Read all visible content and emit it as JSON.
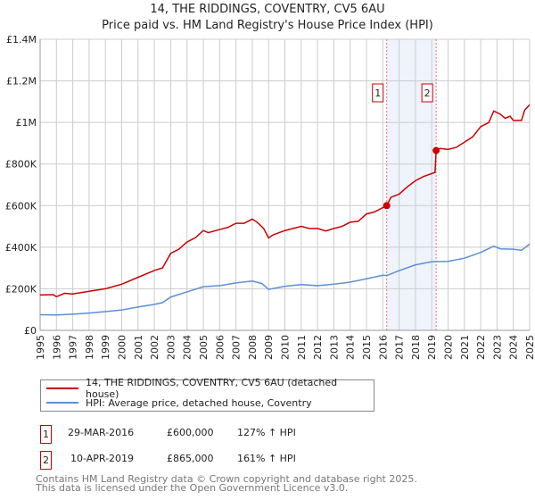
{
  "chart_data": {
    "type": "line",
    "title": "14, THE RIDDINGS, COVENTRY, CV5 6AU",
    "subtitle": "Price paid vs. HM Land Registry's House Price Index (HPI)",
    "xlim": [
      1995,
      2025
    ],
    "ylim": [
      0,
      1400000
    ],
    "y_ticks": [
      0,
      200000,
      400000,
      600000,
      800000,
      1000000,
      1200000,
      1400000
    ],
    "y_tick_labels": [
      "£0",
      "£200K",
      "£400K",
      "£600K",
      "£800K",
      "£1M",
      "£1.2M",
      "£1.4M"
    ],
    "x_ticks": [
      "1995",
      "1996",
      "1997",
      "1998",
      "1999",
      "2000",
      "2001",
      "2002",
      "2003",
      "2004",
      "2005",
      "2006",
      "2007",
      "2008",
      "2009",
      "2010",
      "2011",
      "2012",
      "2013",
      "2014",
      "2015",
      "2016",
      "2017",
      "2018",
      "2019",
      "2020",
      "2021",
      "2022",
      "2023",
      "2024",
      "2025"
    ],
    "grid": true,
    "shaded_range": [
      2016.24,
      2019.27
    ],
    "series": [
      {
        "name": "14, THE RIDDINGS, COVENTRY, CV5 6AU (detached house)",
        "color": "#cc0000",
        "x": [
          1995,
          1995.8,
          1996,
          1996.5,
          1997,
          1998,
          1999,
          2000,
          2001,
          2002,
          2002.5,
          2003,
          2003.5,
          2004,
          2004.5,
          2005,
          2005.3,
          2006,
          2006.5,
          2007,
          2007.5,
          2008,
          2008.3,
          2008.7,
          2009,
          2009.3,
          2010,
          2010.5,
          2011,
          2011.5,
          2012,
          2012.5,
          2013,
          2013.5,
          2014,
          2014.5,
          2015,
          2015.5,
          2016.24,
          2016.5,
          2017,
          2017.5,
          2018,
          2018.5,
          2019.2,
          2019.27,
          2019.5,
          2020,
          2020.5,
          2021,
          2021.5,
          2022,
          2022.5,
          2022.8,
          2023.2,
          2023.5,
          2023.8,
          2024,
          2024.5,
          2024.7,
          2025
        ],
        "y": [
          170000,
          172000,
          162000,
          178000,
          175000,
          188000,
          200000,
          222000,
          255000,
          288000,
          300000,
          370000,
          390000,
          425000,
          445000,
          480000,
          470000,
          485000,
          495000,
          515000,
          515000,
          535000,
          520000,
          490000,
          445000,
          460000,
          480000,
          490000,
          500000,
          490000,
          490000,
          478000,
          490000,
          500000,
          520000,
          525000,
          560000,
          570000,
          600000,
          640000,
          655000,
          690000,
          720000,
          740000,
          760000,
          865000,
          875000,
          870000,
          880000,
          905000,
          930000,
          980000,
          1000000,
          1055000,
          1040000,
          1020000,
          1030000,
          1010000,
          1010000,
          1060000,
          1085000
        ]
      },
      {
        "name": "HPI: Average price, detached house, Coventry",
        "color": "#5b8fd6",
        "x": [
          1995,
          1996,
          1997,
          1998,
          1999,
          2000,
          2001,
          2002,
          2002.5,
          2003,
          2004,
          2005,
          2006,
          2007,
          2008,
          2008.6,
          2009,
          2010,
          2011,
          2012,
          2013,
          2014,
          2015,
          2016,
          2016.24,
          2017,
          2018,
          2019,
          2020,
          2021,
          2022,
          2022.8,
          2023.2,
          2024,
          2024.5,
          2025
        ],
        "y": [
          75000,
          74000,
          78000,
          83000,
          90000,
          98000,
          112000,
          125000,
          133000,
          160000,
          185000,
          210000,
          215000,
          228000,
          237000,
          225000,
          197000,
          212000,
          220000,
          215000,
          222000,
          232000,
          248000,
          265000,
          264000,
          287000,
          315000,
          330000,
          332000,
          347000,
          375000,
          405000,
          392000,
          390000,
          385000,
          415000
        ]
      }
    ],
    "sales": [
      {
        "label": "1",
        "x": 2016.24,
        "y": 600000,
        "date": "29-MAR-2016",
        "price": "£600,000",
        "hpi": "127% ↑ HPI"
      },
      {
        "label": "2",
        "x": 2019.27,
        "y": 865000,
        "date": "10-APR-2019",
        "price": "£865,000",
        "hpi": "161% ↑ HPI"
      }
    ]
  },
  "footer": {
    "line1": "Contains HM Land Registry data © Crown copyright and database right 2025.",
    "line2": "This data is licensed under the Open Government Licence v3.0."
  }
}
